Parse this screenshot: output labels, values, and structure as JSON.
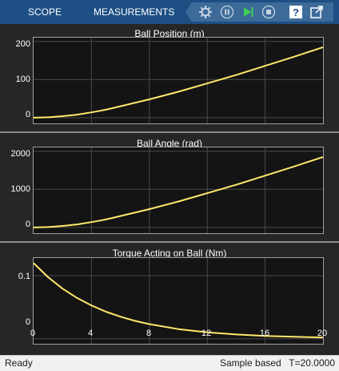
{
  "toolbar": {
    "tabs": [
      "SCOPE",
      "MEASUREMENTS"
    ],
    "buttons": [
      "settings-icon",
      "pause-icon",
      "step-forward-icon",
      "stop-icon",
      "help-icon",
      "undock-icon"
    ]
  },
  "colors": {
    "accent": "#1d4f84",
    "line": "#ffe96b",
    "axes_bg": "#141414",
    "grid": "#4a4a4a"
  },
  "status": {
    "state": "Ready",
    "mode": "Sample based",
    "time": "T=20.0000"
  },
  "chart_data": [
    {
      "type": "line",
      "title": "Ball Position (m)",
      "xlim": [
        0,
        20
      ],
      "ylim": [
        -15,
        210
      ],
      "yticks": [
        0,
        100,
        200
      ],
      "yticklabels": [
        "0",
        "100",
        "200"
      ],
      "grid": true,
      "x": [
        0,
        1,
        2,
        3,
        4,
        5,
        6,
        8,
        10,
        12,
        14,
        16,
        18,
        20
      ],
      "y": [
        0,
        1,
        4,
        8,
        14,
        21,
        30,
        48,
        68,
        90,
        112,
        136,
        160,
        185
      ]
    },
    {
      "type": "line",
      "title": "Ball Angle (rad)",
      "xlim": [
        0,
        20
      ],
      "ylim": [
        -150,
        2100
      ],
      "yticks": [
        0,
        1000,
        2000
      ],
      "yticklabels": [
        "0",
        "1000",
        "2000"
      ],
      "grid": true,
      "x": [
        0,
        1,
        2,
        3,
        4,
        5,
        6,
        8,
        10,
        12,
        14,
        16,
        18,
        20
      ],
      "y": [
        0,
        10,
        40,
        80,
        140,
        210,
        300,
        480,
        680,
        900,
        1120,
        1360,
        1600,
        1850
      ]
    },
    {
      "type": "line",
      "title": "Torque Acting on Ball (Nm)",
      "xlim": [
        0,
        20
      ],
      "ylim": [
        -0.008,
        0.128
      ],
      "yticks": [
        0,
        0.1
      ],
      "yticklabels": [
        "0",
        "0.1"
      ],
      "xticks": [
        0,
        4,
        8,
        12,
        16,
        20
      ],
      "xticklabels": [
        "0",
        "4",
        "8",
        "12",
        "16",
        "20"
      ],
      "grid": true,
      "x": [
        0,
        1,
        2,
        3,
        4,
        5,
        6,
        7,
        8,
        10,
        12,
        14,
        16,
        18,
        20
      ],
      "y": [
        0.12,
        0.0976,
        0.0795,
        0.0647,
        0.0527,
        0.0429,
        0.0349,
        0.0284,
        0.0231,
        0.0153,
        0.0102,
        0.0067,
        0.0045,
        0.003,
        0.002
      ]
    }
  ]
}
